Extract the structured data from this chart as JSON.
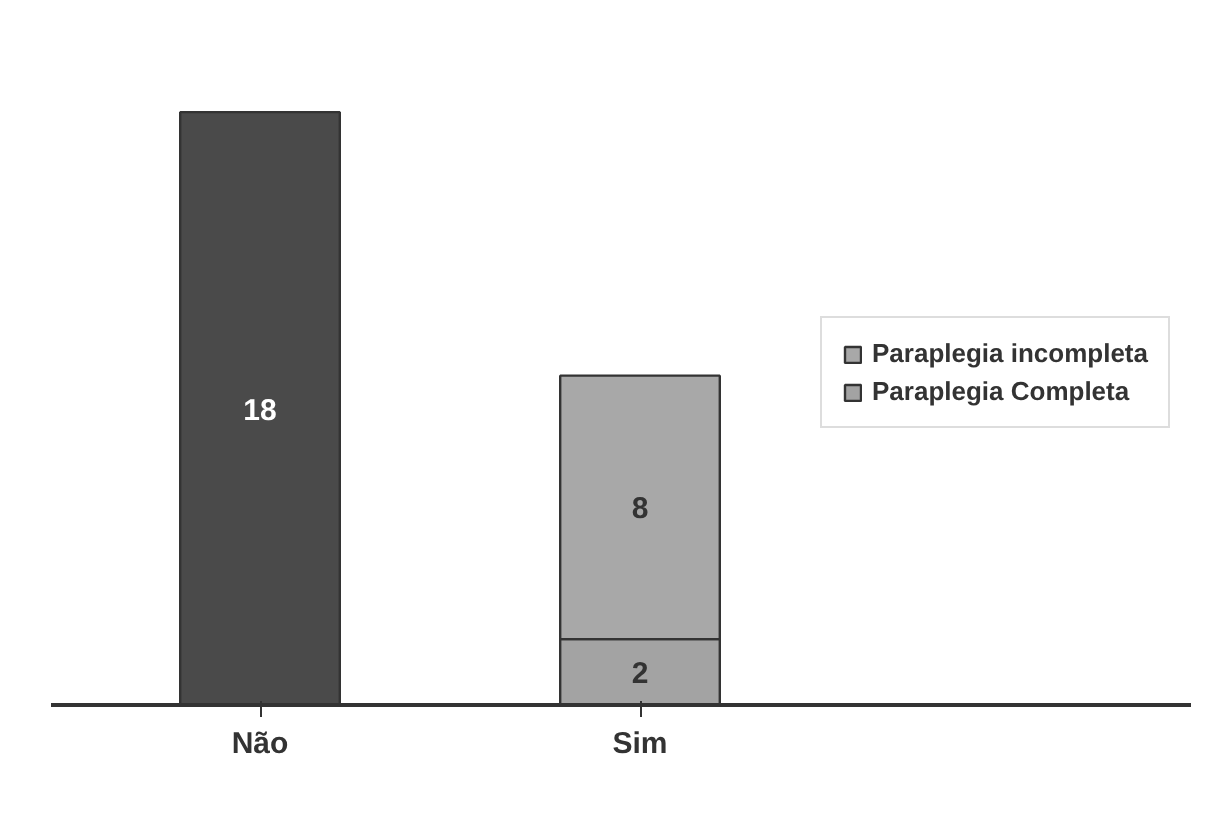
{
  "chart_data": {
    "type": "bar",
    "stacked": true,
    "data_labels": true,
    "legend": "right",
    "grid": false,
    "categories": [
      "Não",
      "Sim"
    ],
    "series": [
      {
        "color": "#4a4a4a",
        "values": [
          18,
          null
        ]
      },
      {
        "name": "Paraplegia Completa",
        "color": "#a3a3a3",
        "values": [
          null,
          2
        ]
      },
      {
        "name": "Paraplegia incompleta",
        "color": "#a8a8a8",
        "values": [
          null,
          8
        ]
      }
    ]
  }
}
